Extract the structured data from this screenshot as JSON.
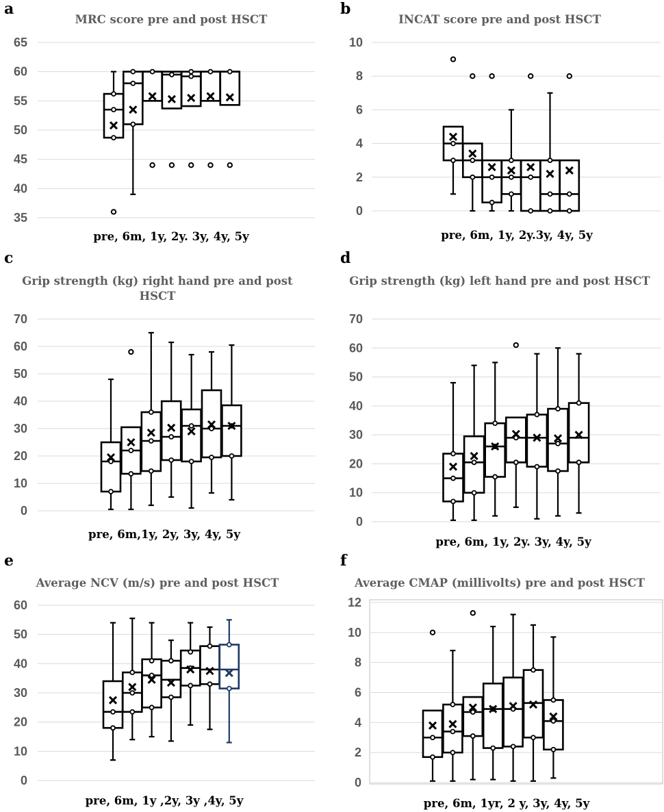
{
  "chart_data": [
    {
      "id": "a",
      "type": "box",
      "panel_label": "a",
      "title": "MRC score pre and post HSCT",
      "xlabel": "pre, 6m, 1y, 2y.  3y, 4y, 5y",
      "ylim": [
        35,
        65
      ],
      "yticks": [
        35,
        40,
        45,
        50,
        55,
        60,
        65
      ],
      "boxes": [
        {
          "q1": 48.7,
          "q3": 56.2,
          "median": 53.5,
          "mean": 50.8,
          "whisker_low": 48.7,
          "whisker_high": 60,
          "points": [
            56.2,
            53.5,
            48.7
          ],
          "outliers": [
            36
          ]
        },
        {
          "q1": 51,
          "q3": 60,
          "median": 58,
          "mean": 53.5,
          "whisker_low": 39,
          "whisker_high": 60,
          "points": [
            60,
            58,
            51
          ],
          "outliers": []
        },
        {
          "q1": 55,
          "q3": 60,
          "median": 60,
          "mean": 55.8,
          "whisker_low": 55,
          "whisker_high": 60,
          "points": [
            60
          ],
          "outliers": [
            44
          ]
        },
        {
          "q1": 53.7,
          "q3": 60,
          "median": 59.5,
          "mean": 55.3,
          "whisker_low": 53.7,
          "whisker_high": 60,
          "points": [
            59.5
          ],
          "outliers": [
            44
          ]
        },
        {
          "q1": 54.1,
          "q3": 60,
          "median": 59.2,
          "mean": 55.5,
          "whisker_low": 54.1,
          "whisker_high": 60,
          "points": [
            60,
            59.2
          ],
          "outliers": [
            44
          ]
        },
        {
          "q1": 55,
          "q3": 60,
          "median": 60,
          "mean": 55.8,
          "whisker_low": 55,
          "whisker_high": 60,
          "points": [
            60
          ],
          "outliers": [
            44
          ]
        },
        {
          "q1": 54.3,
          "q3": 60,
          "median": 60,
          "mean": 55.6,
          "whisker_low": 54.3,
          "whisker_high": 60,
          "points": [
            60
          ],
          "outliers": [
            44
          ]
        }
      ]
    },
    {
      "id": "b",
      "type": "box",
      "panel_label": "b",
      "title": "INCAT score pre and post HSCT",
      "xlabel": "pre, 6m, 1y, 2y.3y, 4y, 5y",
      "ylim": [
        0,
        10
      ],
      "yticks": [
        0,
        2,
        4,
        6,
        8,
        10
      ],
      "boxes": [
        {
          "q1": 3,
          "q3": 5,
          "median": 4,
          "mean": 4.4,
          "whisker_low": 1,
          "whisker_high": 5,
          "points": [
            4,
            3
          ],
          "outliers": [
            9
          ]
        },
        {
          "q1": 2,
          "q3": 4,
          "median": 3,
          "mean": 3.4,
          "whisker_low": 0,
          "whisker_high": 4,
          "points": [
            3,
            2
          ],
          "outliers": [
            8
          ]
        },
        {
          "q1": 0.5,
          "q3": 3,
          "median": 2,
          "mean": 2.6,
          "whisker_low": 0,
          "whisker_high": 3,
          "points": [
            2,
            0.5
          ],
          "outliers": [
            8
          ]
        },
        {
          "q1": 1,
          "q3": 3,
          "median": 2,
          "mean": 2.4,
          "whisker_low": 0,
          "whisker_high": 6,
          "points": [
            3,
            2,
            1
          ],
          "outliers": []
        },
        {
          "q1": 0,
          "q3": 3,
          "median": 2,
          "mean": 2.6,
          "whisker_low": 0,
          "whisker_high": 3,
          "points": [
            2,
            0
          ],
          "outliers": [
            8
          ]
        },
        {
          "q1": 0,
          "q3": 3,
          "median": 1,
          "mean": 2.2,
          "whisker_low": 0,
          "whisker_high": 7,
          "points": [
            3,
            1,
            0
          ],
          "outliers": []
        },
        {
          "q1": 0,
          "q3": 3,
          "median": 1,
          "mean": 2.4,
          "whisker_low": 0,
          "whisker_high": 3,
          "points": [
            1,
            0
          ],
          "outliers": [
            8
          ]
        }
      ]
    },
    {
      "id": "c",
      "type": "box",
      "panel_label": "c",
      "title": "Grip strength (kg) right hand pre and post HSCT",
      "xlabel": "pre, 6m,1y, 2y, 3y, 4y, 5y",
      "ylim": [
        0,
        70
      ],
      "yticks": [
        0,
        10,
        20,
        30,
        40,
        50,
        60,
        70
      ],
      "boxes": [
        {
          "q1": 7,
          "q3": 25,
          "median": 18,
          "mean": 19.5,
          "whisker_low": 0.5,
          "whisker_high": 48,
          "points": [
            18,
            7
          ],
          "outliers": []
        },
        {
          "q1": 13.5,
          "q3": 30.5,
          "median": 22,
          "mean": 25,
          "whisker_low": 0.5,
          "whisker_high": 30.5,
          "points": [
            22,
            13.5
          ],
          "outliers": [
            58
          ]
        },
        {
          "q1": 14.5,
          "q3": 36,
          "median": 25.5,
          "mean": 28.5,
          "whisker_low": 2,
          "whisker_high": 65,
          "points": [
            36,
            25.5,
            14.5
          ],
          "outliers": []
        },
        {
          "q1": 18.5,
          "q3": 40,
          "median": 27,
          "mean": 30.3,
          "whisker_low": 5,
          "whisker_high": 61.5,
          "points": [
            27,
            18.5
          ],
          "outliers": []
        },
        {
          "q1": 18,
          "q3": 37,
          "median": 31,
          "mean": 29,
          "whisker_low": 1,
          "whisker_high": 57,
          "points": [
            31,
            18
          ],
          "outliers": []
        },
        {
          "q1": 19.5,
          "q3": 44,
          "median": 30,
          "mean": 31.5,
          "whisker_low": 6.5,
          "whisker_high": 58,
          "points": [
            30,
            19.5
          ],
          "outliers": []
        },
        {
          "q1": 20,
          "q3": 38.5,
          "median": 31,
          "mean": 31,
          "whisker_low": 4,
          "whisker_high": 60.5,
          "points": [
            31,
            20
          ],
          "outliers": []
        }
      ]
    },
    {
      "id": "d",
      "type": "box",
      "panel_label": "d",
      "title": "Grip strength (kg) left hand pre and post HSCT",
      "xlabel": "pre, 6m, 1y,  2y. 3y, 4y, 5y",
      "ylim": [
        0,
        70
      ],
      "yticks": [
        0,
        10,
        20,
        30,
        40,
        50,
        60,
        70
      ],
      "boxes": [
        {
          "q1": 7,
          "q3": 23.5,
          "median": 15,
          "mean": 19,
          "whisker_low": 0.5,
          "whisker_high": 48,
          "points": [
            23.5,
            15,
            7
          ],
          "outliers": []
        },
        {
          "q1": 10,
          "q3": 29.5,
          "median": 20.5,
          "mean": 22.7,
          "whisker_low": 0.5,
          "whisker_high": 54,
          "points": [
            20.5,
            10
          ],
          "outliers": []
        },
        {
          "q1": 15.5,
          "q3": 34,
          "median": 26,
          "mean": 26,
          "whisker_low": 2,
          "whisker_high": 55,
          "points": [
            34,
            26,
            15.5
          ],
          "outliers": []
        },
        {
          "q1": 20.5,
          "q3": 36,
          "median": 29,
          "mean": 30.3,
          "whisker_low": 5,
          "whisker_high": 36,
          "points": [
            29,
            20.5
          ],
          "outliers": [
            61
          ]
        },
        {
          "q1": 19,
          "q3": 37,
          "median": 29,
          "mean": 29,
          "whisker_low": 1,
          "whisker_high": 58,
          "points": [
            37,
            19
          ],
          "outliers": []
        },
        {
          "q1": 17.5,
          "q3": 39,
          "median": 27,
          "mean": 28.8,
          "whisker_low": 2,
          "whisker_high": 60,
          "points": [
            39,
            27,
            17.5
          ],
          "outliers": []
        },
        {
          "q1": 20.5,
          "q3": 41,
          "median": 29,
          "mean": 30,
          "whisker_low": 3,
          "whisker_high": 58,
          "points": [
            41,
            20.5
          ],
          "outliers": []
        }
      ]
    },
    {
      "id": "e",
      "type": "box",
      "panel_label": "e",
      "title": "Average NCV (m/s) pre and post HSCT",
      "xlabel": "pre, 6m, 1y ,2y, 3y ,4y, 5y",
      "ylim": [
        0,
        60
      ],
      "yticks": [
        0,
        10,
        20,
        30,
        40,
        50,
        60
      ],
      "boxes": [
        {
          "q1": 18,
          "q3": 34,
          "median": 23.5,
          "mean": 27.5,
          "whisker_low": 7,
          "whisker_high": 54,
          "points": [
            23.5,
            18
          ],
          "outliers": []
        },
        {
          "q1": 23.5,
          "q3": 37,
          "median": 30,
          "mean": 32,
          "whisker_low": 14,
          "whisker_high": 55.5,
          "points": [
            37,
            30,
            23.5
          ],
          "outliers": []
        },
        {
          "q1": 25,
          "q3": 41.5,
          "median": 36,
          "mean": 34.5,
          "whisker_low": 15,
          "whisker_high": 54,
          "points": [
            41,
            36,
            25
          ],
          "outliers": []
        },
        {
          "q1": 28.5,
          "q3": 41,
          "median": 34.5,
          "mean": 33.5,
          "whisker_low": 13.5,
          "whisker_high": 48,
          "points": [
            41,
            28.5
          ],
          "outliers": []
        },
        {
          "q1": 32.5,
          "q3": 44.5,
          "median": 38.5,
          "mean": 38,
          "whisker_low": 19,
          "whisker_high": 54,
          "points": [
            44,
            38.5,
            32.5
          ],
          "outliers": []
        },
        {
          "q1": 33,
          "q3": 46,
          "median": 38,
          "mean": 37.5,
          "whisker_low": 17.5,
          "whisker_high": 52.5,
          "points": [
            46,
            33
          ],
          "outliers": []
        },
        {
          "q1": 31.5,
          "q3": 46.5,
          "median": 38,
          "mean": 36.8,
          "whisker_low": 13,
          "whisker_high": 55,
          "points": [
            46.5,
            31.5
          ],
          "outliers": [],
          "color": "#1f3864"
        }
      ]
    },
    {
      "id": "f",
      "type": "box",
      "panel_label": "f",
      "title": "Average CMAP (millivolts) pre and post HSCT",
      "xlabel": "pre, 6m, 1yr, 2 y, 3y, 4y, 5y",
      "ylim": [
        0,
        12
      ],
      "yticks": [
        0,
        2,
        4,
        6,
        8,
        10,
        12
      ],
      "boxes": [
        {
          "q1": 1.7,
          "q3": 4.8,
          "median": 3,
          "mean": 3.8,
          "whisker_low": 0.1,
          "whisker_high": 4.8,
          "points": [
            3,
            1.7
          ],
          "outliers": [
            10
          ]
        },
        {
          "q1": 2,
          "q3": 5.2,
          "median": 3.4,
          "mean": 3.9,
          "whisker_low": 0.1,
          "whisker_high": 8.8,
          "points": [
            5.2,
            3.4,
            2
          ],
          "outliers": []
        },
        {
          "q1": 3.1,
          "q3": 5.7,
          "median": 4.7,
          "mean": 5,
          "whisker_low": 0.2,
          "whisker_high": 5.7,
          "points": [
            4.7,
            3.1
          ],
          "outliers": [
            11.3
          ]
        },
        {
          "q1": 2.3,
          "q3": 6.6,
          "median": 4.9,
          "mean": 4.9,
          "whisker_low": 0.2,
          "whisker_high": 10.4,
          "points": [
            4.9,
            2.3
          ],
          "outliers": []
        },
        {
          "q1": 2.4,
          "q3": 7,
          "median": 4.9,
          "mean": 5.1,
          "whisker_low": 0.1,
          "whisker_high": 11.2,
          "points": [
            4.9,
            2.4
          ],
          "outliers": []
        },
        {
          "q1": 3,
          "q3": 7.5,
          "median": 5.3,
          "mean": 5.2,
          "whisker_low": 0.1,
          "whisker_high": 10.5,
          "points": [
            7.5,
            3
          ],
          "outliers": []
        },
        {
          "q1": 2.2,
          "q3": 5.5,
          "median": 4.1,
          "mean": 4.4,
          "whisker_low": 0.3,
          "whisker_high": 9.7,
          "points": [
            5.5,
            4.1,
            2.2
          ],
          "outliers": []
        }
      ]
    }
  ],
  "colors": {
    "box": "#000000",
    "accent_box": "#1f3864",
    "grid": "#d9d9d9",
    "tick": "#595959",
    "title": "#5f5f5f"
  }
}
